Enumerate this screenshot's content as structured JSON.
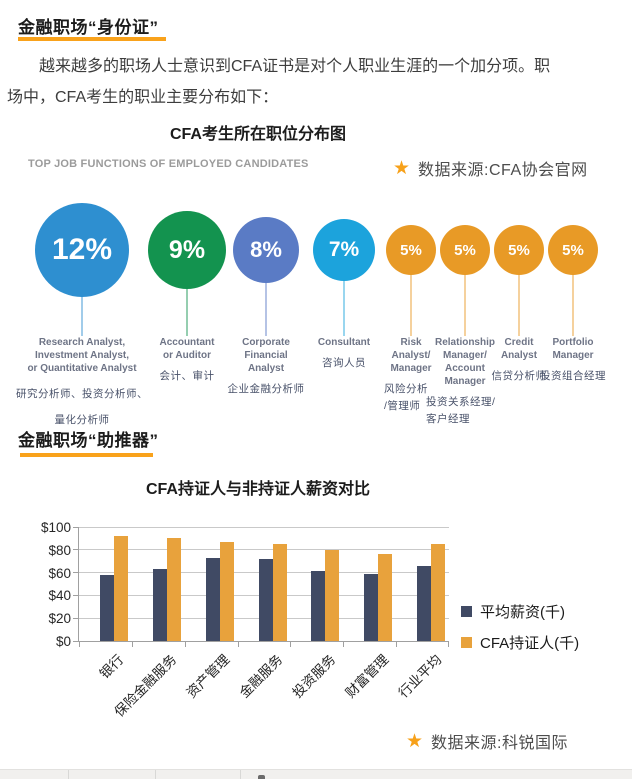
{
  "sections": [
    {
      "heading": "金融职场“身份证”",
      "body_lines": [
        "越来越多的职场人士意识到CFA证书是对个人职业生涯的一个加分项。职",
        "场中，CFA考生的职业主要分布如下："
      ]
    },
    {
      "heading": "金融职场“助推器”"
    }
  ],
  "icons": {
    "star": "★"
  },
  "colors": {
    "accent_underline": "#F9A21B",
    "star": "#F7A11A",
    "gridline": "#C9C9C9",
    "axis": "#A0A0A0"
  },
  "chart_data": [
    {
      "type": "bubble",
      "title": "CFA考生所在职位分布图",
      "subtitle": "TOP JOB FUNCTIONS OF EMPLOYED CANDIDATES",
      "source": "数据来源:CFA协会官网",
      "items": [
        {
          "percent": "12%",
          "value": 12,
          "color": "#2E8FD0",
          "label_en": "Research Analyst,\nInvestment Analyst,\nor Quantitative Analyst",
          "label_cn": "研究分析师、投资分析师、\n量化分析师"
        },
        {
          "percent": "9%",
          "value": 9,
          "color": "#13934F",
          "label_en": "Accountant\nor Auditor",
          "label_cn": "会计、审计"
        },
        {
          "percent": "8%",
          "value": 8,
          "color": "#5A7BC5",
          "label_en": "Corporate\nFinancial\nAnalyst",
          "label_cn": "企业金融分析师"
        },
        {
          "percent": "7%",
          "value": 7,
          "color": "#1CA3DC",
          "label_en": "Consultant",
          "label_cn": "咨询人员"
        },
        {
          "percent": "5%",
          "value": 5,
          "color": "#E89A26",
          "label_en": "Risk\nAnalyst/\nManager",
          "label_cn": "风险分析\n/管理师"
        },
        {
          "percent": "5%",
          "value": 5,
          "color": "#E89A26",
          "label_en": "Relationship\nManager/\nAccount\nManager",
          "label_cn": "投资关系经理/\n客户经理"
        },
        {
          "percent": "5%",
          "value": 5,
          "color": "#E89A26",
          "label_en": "Credit\nAnalyst",
          "label_cn": "信贷分析师"
        },
        {
          "percent": "5%",
          "value": 5,
          "color": "#E89A26",
          "label_en": "Portfolio\nManager",
          "label_cn": "投资组合经理"
        }
      ]
    },
    {
      "type": "bar",
      "title": "CFA持证人与非持证人薪资对比",
      "source": "数据来源:科锐国际",
      "categories": [
        "银行",
        "保险金融服务",
        "资产管理",
        "金融服务",
        "投资服务",
        "财富管理",
        "行业平均"
      ],
      "series": [
        {
          "name": "平均薪资(千)",
          "color": "#404A64",
          "values": [
            58,
            63,
            73,
            72,
            61,
            59,
            66
          ]
        },
        {
          "name": "CFA持证人(千)",
          "color": "#E8A23C",
          "values": [
            92,
            90,
            87,
            85,
            80,
            76,
            85
          ]
        }
      ],
      "ylim": [
        0,
        100
      ],
      "yticks": [
        "$0",
        "$20",
        "$40",
        "$60",
        "$80",
        "$100"
      ],
      "grid": true,
      "legend_position": "right"
    }
  ]
}
